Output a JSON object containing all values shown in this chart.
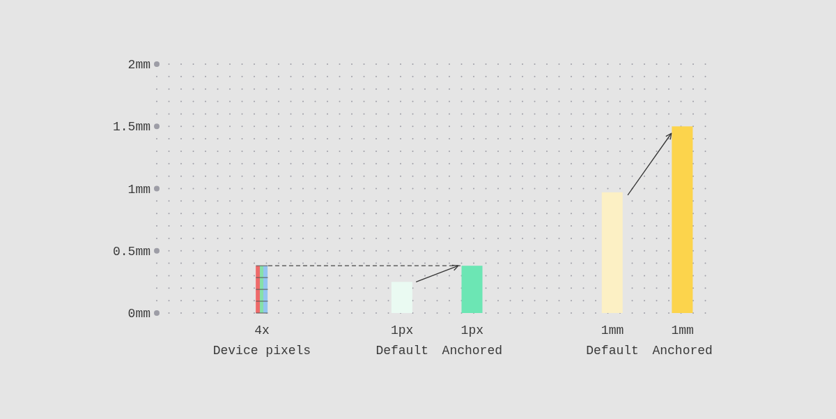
{
  "chart_data": {
    "type": "bar",
    "categories": [
      null,
      "4x\nDevice pixels",
      null,
      "1px\nDefault",
      "1px\nAnchored",
      null,
      "1mm\nDefault",
      "1mm\nAnchored"
    ],
    "values": [
      null,
      0.38,
      null,
      0.25,
      0.38,
      null,
      0.97,
      1.5
    ],
    "colors": [
      null,
      "#ee6a6a",
      null,
      "#eafaf2",
      "#6ce6b4",
      null,
      "#fcf0c4",
      "#fcd44c"
    ],
    "ylim": [
      0,
      2
    ],
    "yticks": [
      {
        "value": 0,
        "label": "0mm"
      },
      {
        "value": 0.1,
        "label": null
      },
      {
        "value": 0.2,
        "label": null
      },
      {
        "value": 0.3,
        "label": null
      },
      {
        "value": 0.4,
        "label": null
      },
      {
        "value": 0.5,
        "label": "0.5mm"
      },
      {
        "value": 0.6,
        "label": null
      },
      {
        "value": 0.7,
        "label": null
      },
      {
        "value": 0.8,
        "label": null
      },
      {
        "value": 0.9,
        "label": null
      },
      {
        "value": 1,
        "label": "1mm"
      },
      {
        "value": 1.1,
        "label": null
      },
      {
        "value": 1.2,
        "label": null
      },
      {
        "value": 1.3,
        "label": null
      },
      {
        "value": 1.4,
        "label": null
      },
      {
        "value": 1.5,
        "label": "1.5mm"
      },
      {
        "value": 1.6,
        "label": null
      },
      {
        "value": 1.7,
        "label": null
      },
      {
        "value": 1.8,
        "label": null
      },
      {
        "value": 1.9,
        "label": null
      },
      {
        "value": 2,
        "label": "2mm"
      }
    ],
    "grid": "y"
  }
}
